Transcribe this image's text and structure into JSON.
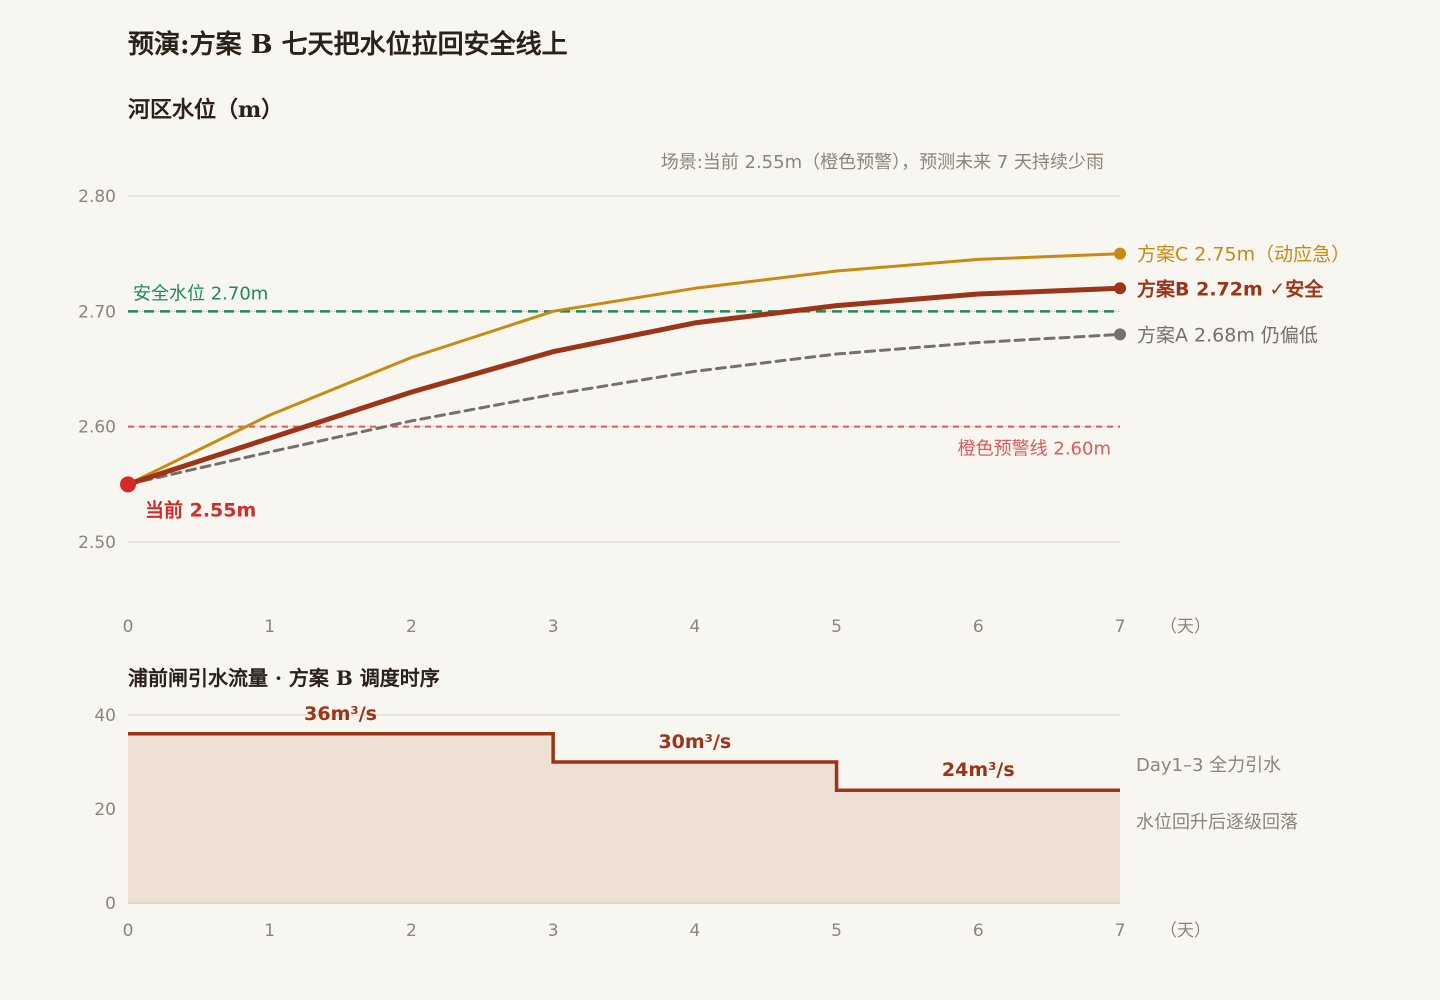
{
  "title": "预演:方案 B 七天把水位拉回安全线上",
  "colors": {
    "background": "#f8f6f1",
    "plan_a": "#777068",
    "plan_b": "#9c3418",
    "plan_c": "#c98a12",
    "safe": "#1f8a5c",
    "warning": "#e05a55",
    "current": "#d62a2a",
    "flow_fill": "#efe0d6",
    "grid": "#e2ddd3"
  },
  "chart_data": [
    {
      "type": "line",
      "title": "河区水位（m）",
      "subtitle": "场景:当前 2.55m（橙色预警），预测未来 7 天持续少雨",
      "x": [
        0,
        1,
        2,
        3,
        4,
        5,
        6,
        7
      ],
      "x_unit": "（天）",
      "ylim": [
        2.5,
        2.8
      ],
      "yticks": [
        "2.50",
        "2.60",
        "2.70",
        "2.80"
      ],
      "series": [
        {
          "key": "c",
          "values": [
            2.55,
            2.61,
            2.66,
            2.7,
            2.72,
            2.735,
            2.745,
            2.75
          ],
          "label": "方案C 2.75m（动应急）",
          "style": "solid-thin"
        },
        {
          "key": "b",
          "values": [
            2.55,
            2.59,
            2.63,
            2.665,
            2.69,
            2.705,
            2.715,
            2.72
          ],
          "label": "方案B 2.72m ✓安全",
          "style": "solid-thick"
        },
        {
          "key": "a",
          "values": [
            2.55,
            2.578,
            2.605,
            2.628,
            2.648,
            2.663,
            2.673,
            2.68
          ],
          "label": "方案A 2.68m 仍偏低",
          "style": "dashed"
        }
      ],
      "reference_lines": [
        {
          "key": "safe",
          "value": 2.7,
          "label": "安全水位 2.70m"
        },
        {
          "key": "warning",
          "value": 2.6,
          "label": "橙色预警线 2.60m"
        }
      ],
      "current_point": {
        "x": 0,
        "y": 2.55,
        "label": "当前 2.55m"
      }
    },
    {
      "type": "area",
      "title": "浦前闸引水流量 · 方案 B 调度时序",
      "x": [
        0,
        1,
        2,
        3,
        4,
        5,
        6,
        7
      ],
      "x_unit": "（天）",
      "ylim": [
        0,
        40
      ],
      "yticks": [
        "0",
        "20",
        "40"
      ],
      "steps": [
        {
          "from": 0,
          "to": 3,
          "value": 36,
          "label": "36m³/s"
        },
        {
          "from": 3,
          "to": 5,
          "value": 30,
          "label": "30m³/s"
        },
        {
          "from": 5,
          "to": 7,
          "value": 24,
          "label": "24m³/s"
        }
      ],
      "notes": [
        "Day1–3 全力引水",
        "水位回升后逐级回落"
      ]
    }
  ]
}
